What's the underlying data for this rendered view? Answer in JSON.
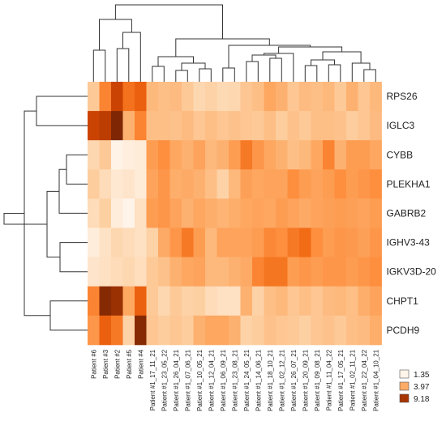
{
  "chart_data": {
    "type": "heatmap",
    "title": "",
    "columns": [
      "Patient #6",
      "Patient #3",
      "Patient #2",
      "Patient #5",
      "Patient #4",
      "Patient #1_17_11_21",
      "Patient #1_23_05_22",
      "Patient #1_26_04_21",
      "Patient #1_07_06_21",
      "Patient #1_10_05_21",
      "Patient #1_12_04_21",
      "Patient #1_06_09_21",
      "Patient #1_23_08_21",
      "Patient #1_24_05_21",
      "Patient #1_14_06_21",
      "Patient #1_18_10_21",
      "Patient #1_02_12_21",
      "Patient #1_26_07_21",
      "Patient #1_20_09_21",
      "Patient #1_09_08_21",
      "Patient #1_11_04_22",
      "Patient #1_17_05_21",
      "Patient #1_02_11_21",
      "Patient #1_22_04_22",
      "Patient #1_04_10_21"
    ],
    "rows": [
      "RPS26",
      "IGLC3",
      "CYBB",
      "PLEKHA1",
      "GABRB2",
      "IGHV3-43",
      "IGKV3D-20",
      "CHPT1",
      "PCDH9"
    ],
    "values": [
      [
        3.5,
        5.5,
        7.5,
        6.0,
        6.5,
        4.0,
        3.8,
        3.9,
        3.5,
        3.0,
        3.2,
        2.9,
        3.0,
        3.6,
        3.8,
        4.5,
        4.2,
        3.6,
        3.9,
        3.8,
        4.0,
        3.5,
        4.2,
        3.6,
        4.0
      ],
      [
        7.5,
        7.8,
        9.2,
        4.2,
        5.5,
        3.8,
        3.8,
        3.7,
        3.9,
        3.6,
        3.8,
        3.6,
        3.7,
        3.6,
        3.5,
        3.8,
        3.4,
        3.7,
        3.5,
        3.8,
        3.8,
        3.7,
        3.4,
        3.6,
        3.9
      ],
      [
        3.0,
        3.5,
        1.5,
        1.8,
        2.0,
        4.8,
        5.2,
        4.5,
        4.2,
        4.6,
        4.0,
        4.2,
        4.8,
        5.8,
        5.0,
        4.5,
        4.2,
        3.8,
        4.0,
        4.5,
        5.5,
        4.2,
        4.8,
        4.8,
        4.5
      ],
      [
        3.4,
        2.8,
        2.2,
        2.4,
        2.0,
        4.6,
        5.0,
        4.3,
        4.4,
        4.2,
        3.8,
        3.2,
        4.0,
        4.7,
        4.5,
        4.6,
        4.6,
        5.2,
        4.8,
        4.6,
        4.8,
        5.2,
        4.8,
        5.0,
        5.2
      ],
      [
        2.8,
        3.3,
        1.9,
        1.4,
        2.6,
        4.8,
        5.0,
        4.6,
        4.2,
        4.5,
        4.3,
        4.1,
        4.3,
        4.5,
        4.6,
        4.5,
        4.8,
        4.6,
        4.4,
        4.6,
        4.7,
        4.8,
        4.7,
        4.6,
        4.8
      ],
      [
        1.9,
        2.5,
        3.0,
        2.8,
        2.6,
        3.2,
        4.4,
        5.0,
        5.8,
        4.8,
        4.0,
        4.6,
        4.6,
        4.6,
        4.8,
        5.4,
        5.2,
        5.8,
        6.2,
        5.2,
        4.8,
        5.0,
        4.9,
        4.7,
        5.0
      ],
      [
        2.4,
        2.6,
        2.8,
        3.0,
        2.7,
        3.5,
        3.7,
        4.2,
        4.5,
        4.6,
        4.0,
        4.0,
        4.2,
        4.4,
        5.5,
        5.9,
        5.9,
        4.8,
        5.0,
        4.8,
        5.0,
        5.0,
        4.8,
        5.0,
        5.2
      ],
      [
        5.5,
        9.0,
        8.5,
        4.5,
        6.5,
        3.5,
        3.0,
        3.5,
        3.2,
        3.3,
        2.8,
        2.6,
        2.6,
        4.2,
        3.2,
        3.8,
        4.0,
        3.6,
        3.8,
        3.6,
        3.9,
        4.0,
        3.8,
        4.3,
        4.6
      ],
      [
        5.0,
        6.5,
        5.8,
        3.2,
        9.0,
        3.6,
        3.4,
        3.6,
        3.4,
        4.2,
        4.5,
        4.5,
        4.2,
        3.2,
        3.4,
        3.7,
        3.6,
        3.5,
        3.3,
        3.6,
        3.7,
        3.5,
        3.8,
        3.9,
        4.3
      ]
    ],
    "legend": {
      "ticks": [
        "1.35",
        "3.97",
        "9.18"
      ],
      "colors": [
        "#fff5eb",
        "#fdab67",
        "#a63603"
      ],
      "placement": "bottom-right"
    },
    "colormap": [
      "#fff5eb",
      "#fee6ce",
      "#fdd0a2",
      "#fdae6b",
      "#fd8d3c",
      "#f16913",
      "#d94801",
      "#a63603",
      "#7f2704"
    ],
    "value_range": [
      1.35,
      9.18
    ],
    "column_dendrogram": true,
    "row_dendrogram": true
  }
}
